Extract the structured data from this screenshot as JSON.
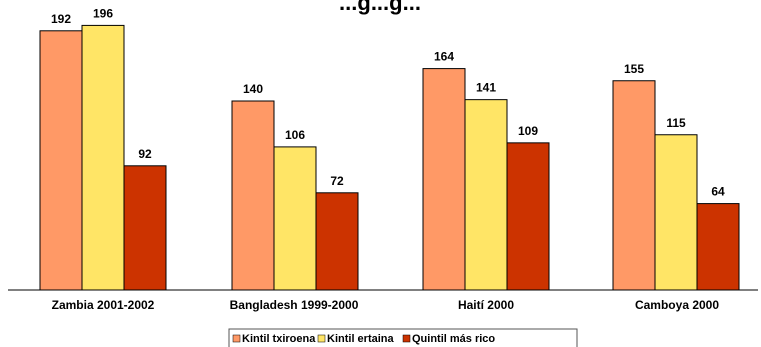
{
  "chart_data": {
    "type": "bar",
    "title": "...g...g...",
    "categories": [
      "Zambia 2001-2002",
      "Bangladesh 1999-2000",
      "Haití 2000",
      "Camboya 2000"
    ],
    "series": [
      {
        "name": "Kintil txiroena",
        "color": "#FF9966",
        "values": [
          192,
          140,
          164,
          155
        ]
      },
      {
        "name": "Kintil ertaina",
        "color": "#FFE566",
        "values": [
          196,
          106,
          141,
          115
        ]
      },
      {
        "name": "Quintil más rico",
        "color": "#CC3300",
        "values": [
          92,
          72,
          109,
          64
        ]
      }
    ],
    "ylim": [
      0,
      210
    ],
    "grid": false,
    "legend_position": "bottom"
  }
}
